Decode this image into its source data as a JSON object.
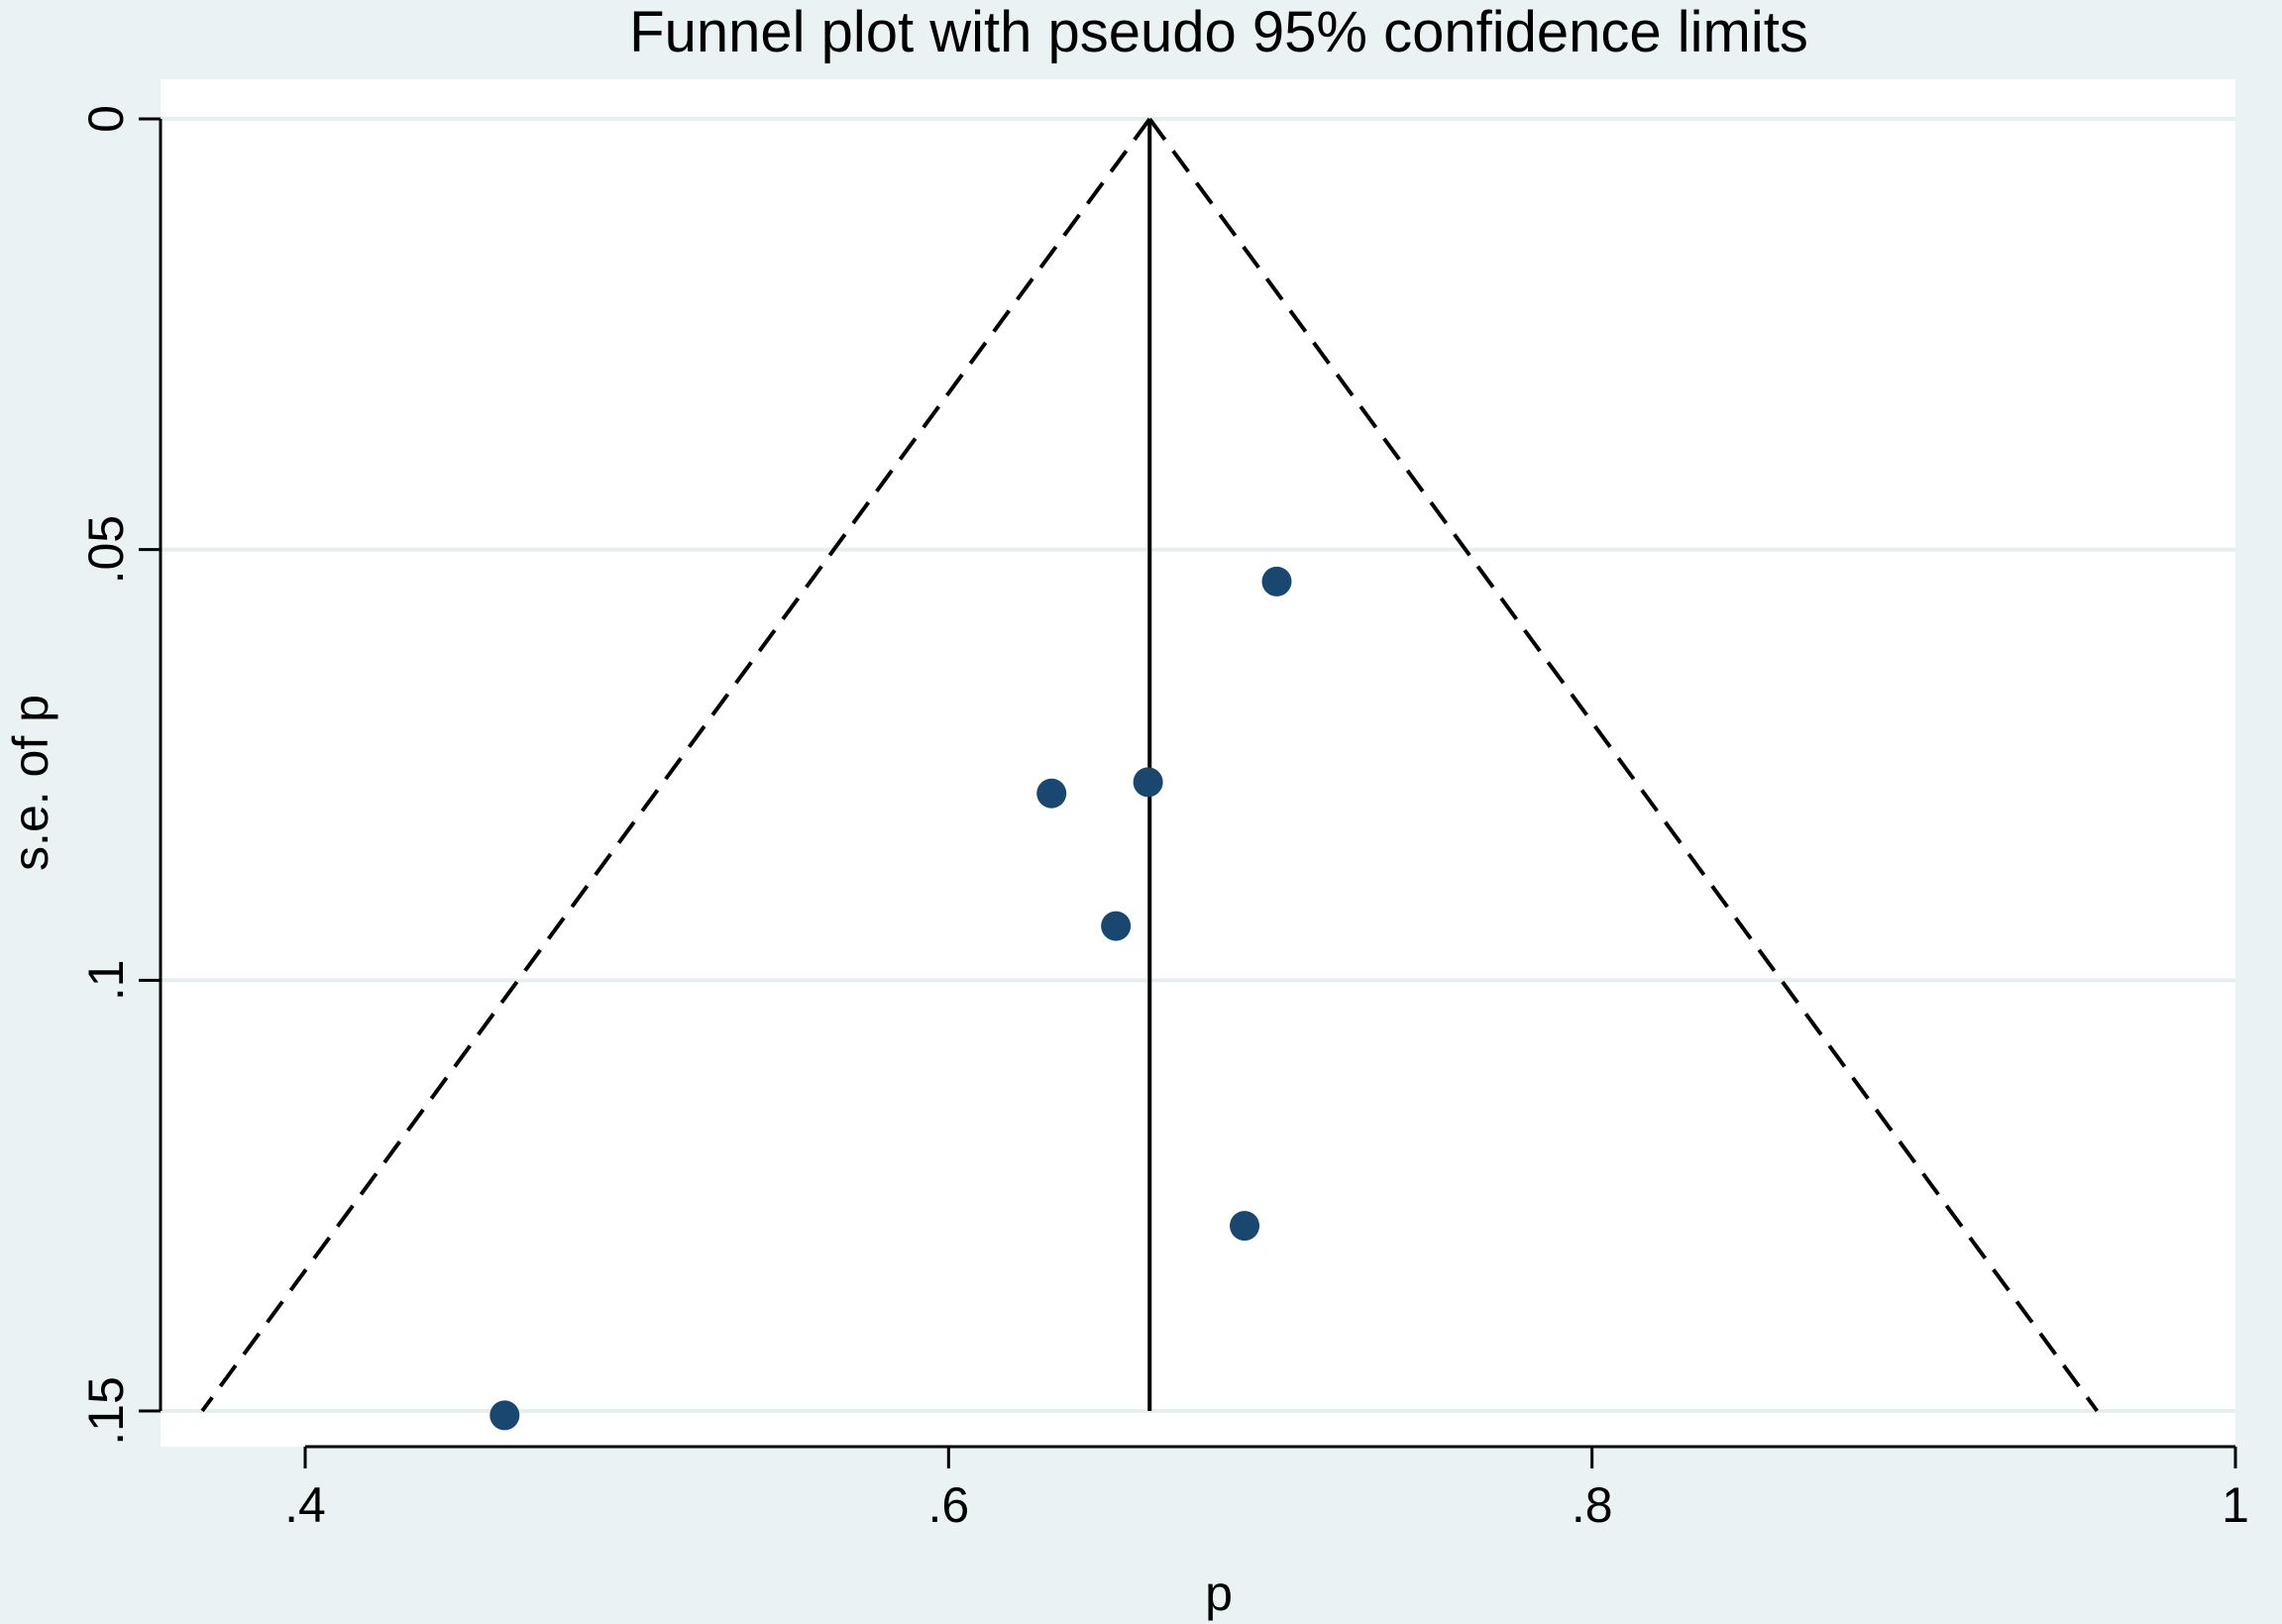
{
  "chart_data": {
    "type": "scatter",
    "title": "Funnel plot with pseudo 95% confidence limits",
    "xlabel": "p",
    "ylabel": "s.e. of p",
    "xlim": [
      0.355,
      1.0
    ],
    "ylim": [
      0,
      0.155
    ],
    "y_reversed": true,
    "x_ticks": [
      {
        "value": 0.4,
        "label": ".4"
      },
      {
        "value": 0.6,
        "label": ".6"
      },
      {
        "value": 0.8,
        "label": ".8"
      },
      {
        "value": 1.0,
        "label": "1"
      }
    ],
    "y_ticks": [
      {
        "value": 0,
        "label": "0"
      },
      {
        "value": 0.05,
        "label": ".05"
      },
      {
        "value": 0.1,
        "label": ".1"
      },
      {
        "value": 0.15,
        "label": ".15"
      }
    ],
    "grid": "horizontal",
    "pooled_estimate": 0.6625,
    "ci_lower_at_max_se": 0.368,
    "ci_upper_at_max_se": 0.957,
    "max_se": 0.15,
    "points": [
      {
        "x": 0.702,
        "y": 0.0537
      },
      {
        "x": 0.632,
        "y": 0.0783
      },
      {
        "x": 0.662,
        "y": 0.077
      },
      {
        "x": 0.652,
        "y": 0.0937
      },
      {
        "x": 0.692,
        "y": 0.1285
      },
      {
        "x": 0.462,
        "y": 0.1505
      }
    ],
    "colors": {
      "background": "#eaf2f3",
      "plot_background": "#ffffff",
      "grid": "#e6eef0",
      "marker": "#1a476f",
      "lines": "#000000"
    }
  }
}
